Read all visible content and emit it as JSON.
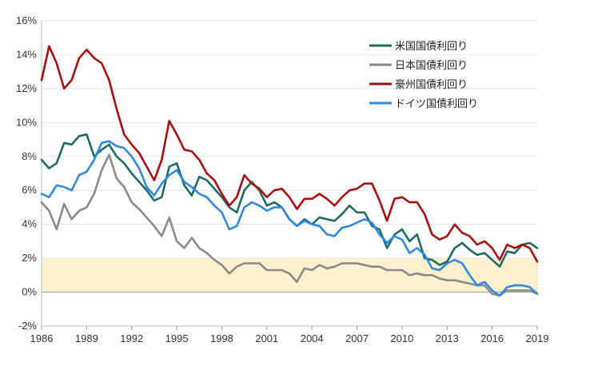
{
  "chart_data": {
    "type": "line",
    "title": "",
    "xlabel": "",
    "ylabel": "",
    "xlim": [
      1986,
      2019
    ],
    "ylim": [
      -2,
      16
    ],
    "x_ticks": [
      "1986",
      "1989",
      "1992",
      "1995",
      "1998",
      "2001",
      "2004",
      "2007",
      "2010",
      "2013",
      "2016",
      "2019"
    ],
    "y_ticks": [
      "-2%",
      "0%",
      "2%",
      "4%",
      "6%",
      "8%",
      "10%",
      "12%",
      "14%",
      "16%"
    ],
    "y_tick_values": [
      -2,
      0,
      2,
      4,
      6,
      8,
      10,
      12,
      14,
      16
    ],
    "grid": "horizontal",
    "legend_position": "top-right",
    "highlight_band": {
      "from": 0,
      "to": 2,
      "color": "#fdf0cc"
    },
    "series": [
      {
        "name": "米国国債利回り",
        "color": "#1e6b66",
        "x": [
          1986,
          1986.5,
          1987,
          1987.5,
          1988,
          1988.5,
          1989,
          1989.5,
          1990,
          1990.5,
          1991,
          1991.5,
          1992,
          1992.5,
          1993,
          1993.5,
          1994,
          1994.5,
          1995,
          1995.5,
          1996,
          1996.5,
          1997,
          1997.5,
          1998,
          1998.5,
          1999,
          1999.5,
          2000,
          2000.5,
          2001,
          2001.5,
          2002,
          2002.5,
          2003,
          2003.5,
          2004,
          2004.5,
          2005,
          2005.5,
          2006,
          2006.5,
          2007,
          2007.5,
          2008,
          2008.5,
          2009,
          2009.5,
          2010,
          2010.5,
          2011,
          2011.5,
          2012,
          2012.5,
          2013,
          2013.5,
          2014,
          2014.5,
          2015,
          2015.5,
          2016,
          2016.5,
          2017,
          2017.5,
          2018,
          2018.5,
          2019
        ],
        "values": [
          7.8,
          7.3,
          7.6,
          8.8,
          8.7,
          9.2,
          9.3,
          8.0,
          8.4,
          8.7,
          8.0,
          7.6,
          7.0,
          6.5,
          6.0,
          5.4,
          5.6,
          7.4,
          7.6,
          6.3,
          5.7,
          6.8,
          6.6,
          6.1,
          5.6,
          5.0,
          4.7,
          6.0,
          6.5,
          6.0,
          5.1,
          5.3,
          5.0,
          4.3,
          3.9,
          4.3,
          4.0,
          4.4,
          4.3,
          4.2,
          4.6,
          5.1,
          4.7,
          4.7,
          3.9,
          3.7,
          2.6,
          3.4,
          3.7,
          3.0,
          3.4,
          2.0,
          1.9,
          1.6,
          1.8,
          2.6,
          2.9,
          2.5,
          2.2,
          2.3,
          1.9,
          1.5,
          2.4,
          2.3,
          2.8,
          2.9,
          2.6
        ]
      },
      {
        "name": "日本国債利回り",
        "color": "#8a8a8a",
        "x": [
          1986,
          1986.5,
          1987,
          1987.5,
          1988,
          1988.5,
          1989,
          1989.5,
          1990,
          1990.5,
          1991,
          1991.5,
          1992,
          1992.5,
          1993,
          1993.5,
          1994,
          1994.5,
          1995,
          1995.5,
          1996,
          1996.5,
          1997,
          1997.5,
          1998,
          1998.5,
          1999,
          1999.5,
          2000,
          2000.5,
          2001,
          2001.5,
          2002,
          2002.5,
          2003,
          2003.5,
          2004,
          2004.5,
          2005,
          2005.5,
          2006,
          2006.5,
          2007,
          2007.5,
          2008,
          2008.5,
          2009,
          2009.5,
          2010,
          2010.5,
          2011,
          2011.5,
          2012,
          2012.5,
          2013,
          2013.5,
          2014,
          2014.5,
          2015,
          2015.5,
          2016,
          2016.5,
          2017,
          2017.5,
          2018,
          2018.5,
          2019
        ],
        "values": [
          5.3,
          4.8,
          3.7,
          5.2,
          4.3,
          4.8,
          5.0,
          5.8,
          7.2,
          8.1,
          6.7,
          6.2,
          5.3,
          4.9,
          4.4,
          3.9,
          3.3,
          4.4,
          3.0,
          2.6,
          3.2,
          2.6,
          2.3,
          1.9,
          1.6,
          1.1,
          1.5,
          1.7,
          1.7,
          1.7,
          1.3,
          1.3,
          1.3,
          1.1,
          0.6,
          1.4,
          1.3,
          1.6,
          1.4,
          1.5,
          1.7,
          1.7,
          1.7,
          1.6,
          1.5,
          1.5,
          1.3,
          1.3,
          1.3,
          1.0,
          1.1,
          1.0,
          1.0,
          0.8,
          0.7,
          0.7,
          0.6,
          0.5,
          0.4,
          0.4,
          -0.1,
          -0.2,
          0.1,
          0.1,
          0.1,
          0.1,
          -0.1
        ]
      },
      {
        "name": "豪州国債利回り",
        "color": "#a50f0f",
        "x": [
          1986,
          1986.5,
          1987,
          1987.5,
          1988,
          1988.5,
          1989,
          1989.5,
          1990,
          1990.5,
          1991,
          1991.5,
          1992,
          1992.5,
          1993,
          1993.5,
          1994,
          1994.5,
          1995,
          1995.5,
          1996,
          1996.5,
          1997,
          1997.5,
          1998,
          1998.5,
          1999,
          1999.5,
          2000,
          2000.5,
          2001,
          2001.5,
          2002,
          2002.5,
          2003,
          2003.5,
          2004,
          2004.5,
          2005,
          2005.5,
          2006,
          2006.5,
          2007,
          2007.5,
          2008,
          2008.5,
          2009,
          2009.5,
          2010,
          2010.5,
          2011,
          2011.5,
          2012,
          2012.5,
          2013,
          2013.5,
          2014,
          2014.5,
          2015,
          2015.5,
          2016,
          2016.5,
          2017,
          2017.5,
          2018,
          2018.5,
          2019
        ],
        "values": [
          12.5,
          14.5,
          13.5,
          12.0,
          12.5,
          13.8,
          14.3,
          13.8,
          13.5,
          12.5,
          10.8,
          9.3,
          8.7,
          8.2,
          7.4,
          6.6,
          7.8,
          10.1,
          9.3,
          8.4,
          8.3,
          7.8,
          7.0,
          6.6,
          5.8,
          5.1,
          5.6,
          6.9,
          6.4,
          6.1,
          5.6,
          6.0,
          6.1,
          5.6,
          4.9,
          5.5,
          5.5,
          5.8,
          5.5,
          5.1,
          5.6,
          6.0,
          6.1,
          6.4,
          6.4,
          5.4,
          4.2,
          5.5,
          5.6,
          5.3,
          5.3,
          4.6,
          3.4,
          3.1,
          3.3,
          4.0,
          3.5,
          3.3,
          2.8,
          3.0,
          2.6,
          1.9,
          2.8,
          2.6,
          2.8,
          2.6,
          1.8
        ]
      },
      {
        "name": "ドイツ国債利回り",
        "color": "#2f89e2",
        "x": [
          1986,
          1986.5,
          1987,
          1987.5,
          1988,
          1988.5,
          1989,
          1989.5,
          1990,
          1990.5,
          1991,
          1991.5,
          1992,
          1992.5,
          1993,
          1993.5,
          1994,
          1994.5,
          1995,
          1995.5,
          1996,
          1996.5,
          1997,
          1997.5,
          1998,
          1998.5,
          1999,
          1999.5,
          2000,
          2000.5,
          2001,
          2001.5,
          2002,
          2002.5,
          2003,
          2003.5,
          2004,
          2004.5,
          2005,
          2005.5,
          2006,
          2006.5,
          2007,
          2007.5,
          2008,
          2008.5,
          2009,
          2009.5,
          2010,
          2010.5,
          2011,
          2011.5,
          2012,
          2012.5,
          2013,
          2013.5,
          2014,
          2014.5,
          2015,
          2015.5,
          2016,
          2016.5,
          2017,
          2017.5,
          2018,
          2018.5,
          2019
        ],
        "values": [
          5.8,
          5.6,
          6.3,
          6.2,
          6.0,
          6.9,
          7.1,
          7.8,
          8.8,
          8.9,
          8.6,
          8.5,
          8.0,
          7.3,
          6.2,
          5.7,
          6.4,
          6.9,
          7.2,
          6.5,
          6.2,
          5.8,
          5.6,
          5.1,
          4.7,
          3.7,
          3.9,
          5.0,
          5.3,
          5.1,
          4.8,
          5.0,
          5.0,
          4.3,
          3.9,
          4.2,
          4.0,
          3.9,
          3.4,
          3.3,
          3.8,
          3.9,
          4.1,
          4.3,
          4.1,
          3.4,
          2.9,
          3.3,
          3.1,
          2.3,
          2.6,
          2.2,
          1.4,
          1.3,
          1.7,
          1.9,
          1.7,
          1.0,
          0.4,
          0.6,
          0.1,
          -0.2,
          0.3,
          0.4,
          0.4,
          0.3,
          -0.1
        ]
      }
    ]
  }
}
